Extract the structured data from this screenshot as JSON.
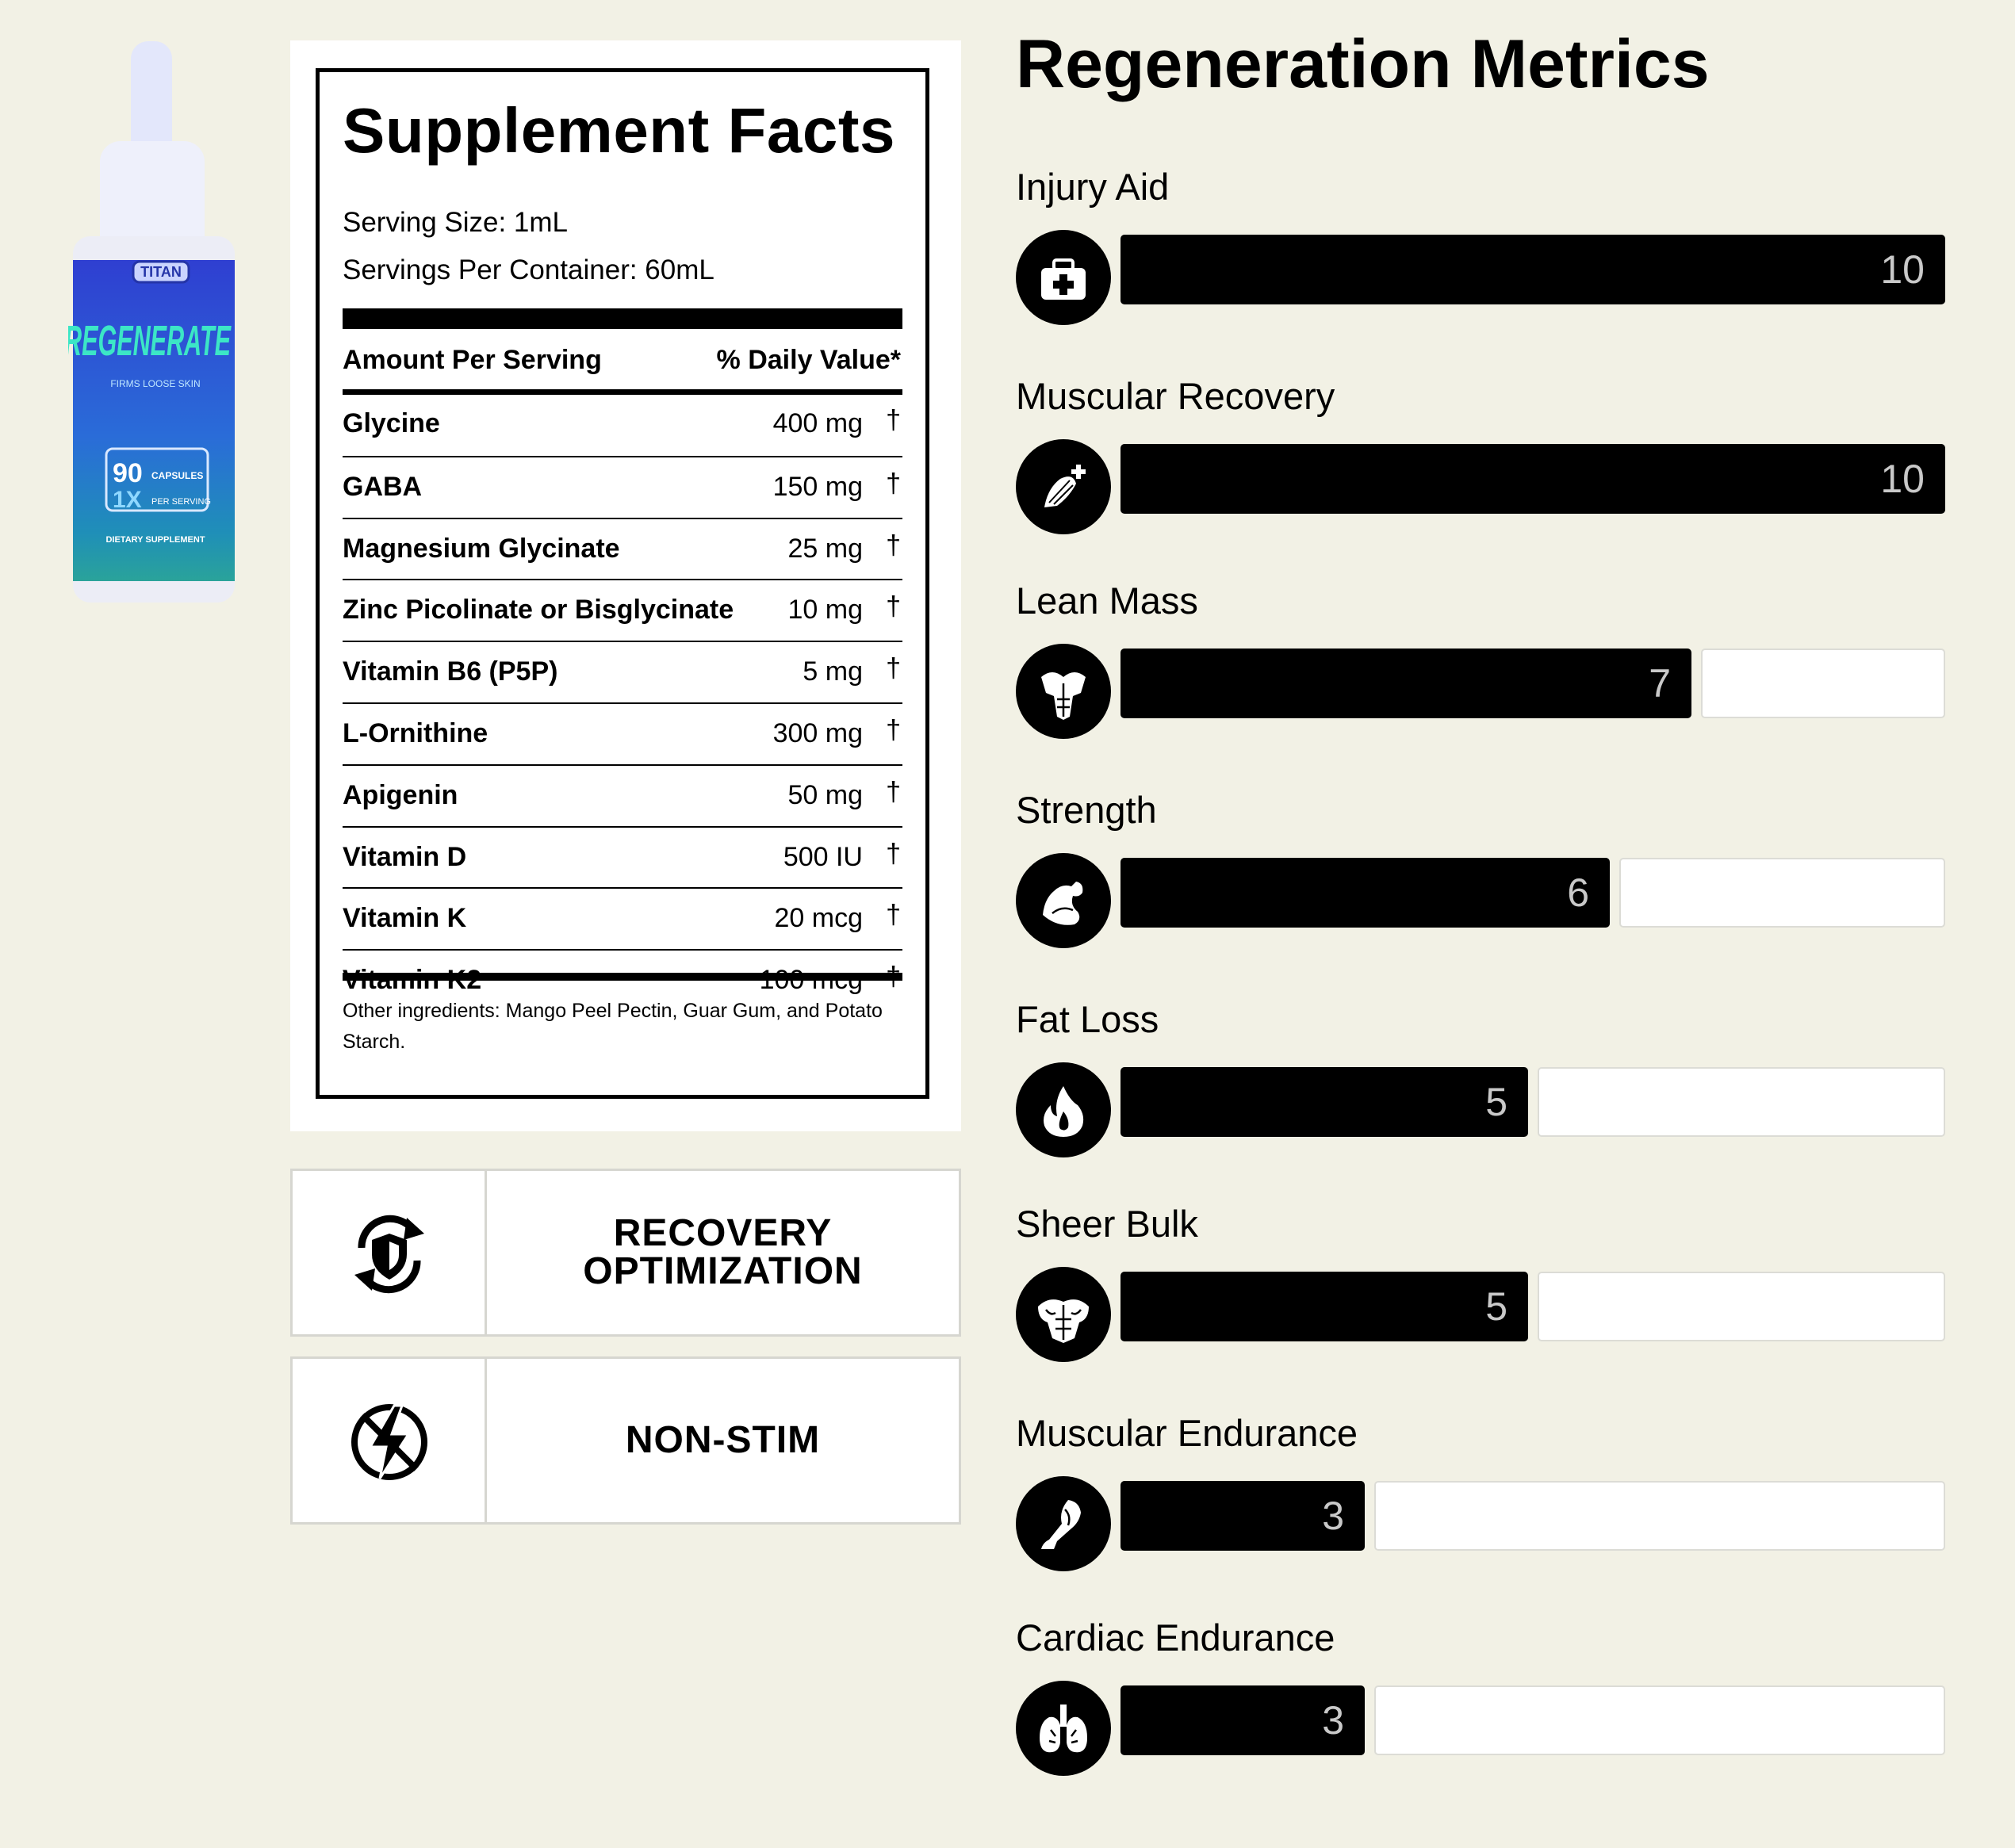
{
  "product": {
    "brand": "TITAN",
    "name": "REGENERATE",
    "tagline": "FIRMS LOOSE SKIN",
    "count": "90",
    "count_unit": "CAPSULES",
    "dose": "1X",
    "dose_unit": "PER SERVING",
    "type": "DIETARY SUPPLEMENT"
  },
  "facts": {
    "title": "Supplement Facts",
    "serving_size": "Serving Size: 1mL",
    "servings_per_container": "Servings Per Container: 60mL",
    "col_amount": "Amount Per Serving",
    "col_dv": "% Daily Value*",
    "rows": [
      {
        "name": "Glycine",
        "amount": "400 mg",
        "dv": "†"
      },
      {
        "name": "GABA",
        "amount": "150 mg",
        "dv": "†"
      },
      {
        "name": "Magnesium Glycinate",
        "amount": "25 mg",
        "dv": "†"
      },
      {
        "name": "Zinc Picolinate or Bisglycinate",
        "amount": "10 mg",
        "dv": "†"
      },
      {
        "name": "Vitamin B6 (P5P)",
        "amount": "5 mg",
        "dv": "†"
      },
      {
        "name": "L-Ornithine",
        "amount": "300 mg",
        "dv": "†"
      },
      {
        "name": "Apigenin",
        "amount": "50 mg",
        "dv": "†"
      },
      {
        "name": "Vitamin D",
        "amount": "500 IU",
        "dv": "†"
      },
      {
        "name": "Vitamin K",
        "amount": "20 mcg",
        "dv": "†"
      },
      {
        "name": "Vitamin K2",
        "amount": "100 mcg",
        "dv": "†"
      }
    ],
    "other": "Other ingredients: Mango Peel Pectin, Guar Gum, and Potato Starch."
  },
  "features": [
    {
      "label": "RECOVERY\nOPTIMIZATION",
      "icon": "shield-cycle-icon"
    },
    {
      "label": "NON-STIM",
      "icon": "no-lightning-icon"
    }
  ],
  "metrics": {
    "title": "Regeneration Metrics",
    "max": 10,
    "items": [
      {
        "label": "Injury Aid",
        "value": 10,
        "icon": "first-aid-icon"
      },
      {
        "label": "Muscular Recovery",
        "value": 10,
        "icon": "arm-plus-icon"
      },
      {
        "label": "Lean Mass",
        "value": 7,
        "icon": "torso-icon"
      },
      {
        "label": "Strength",
        "value": 6,
        "icon": "flexed-arm-icon"
      },
      {
        "label": "Fat Loss",
        "value": 5,
        "icon": "flame-icon"
      },
      {
        "label": "Sheer Bulk",
        "value": 5,
        "icon": "bulk-torso-icon"
      },
      {
        "label": "Muscular Endurance",
        "value": 3,
        "icon": "leg-icon"
      },
      {
        "label": "Cardiac Endurance",
        "value": 3,
        "icon": "lungs-icon"
      }
    ]
  }
}
